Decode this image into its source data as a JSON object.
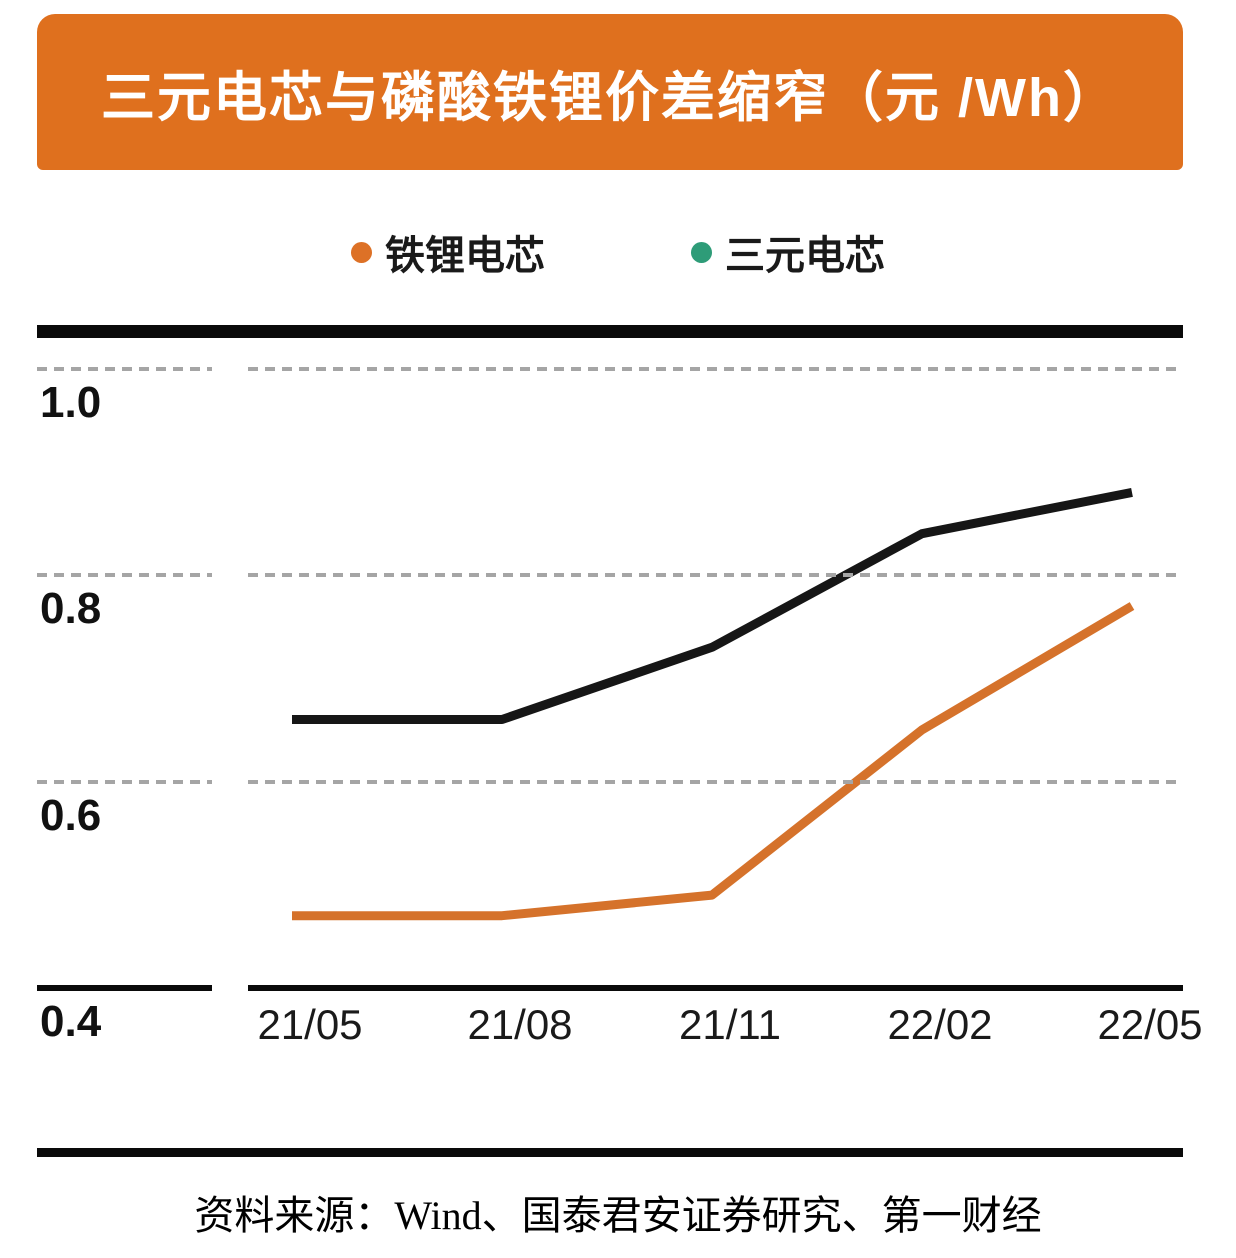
{
  "header": {
    "title": "三元电芯与磷酸铁锂价差缩窄（元 /Wh）",
    "bg_color": "#DF701E",
    "text_color": "#FFFFFF"
  },
  "legend": [
    {
      "key": "lfp",
      "label": "铁锂电芯",
      "dot_color": "#DD7126"
    },
    {
      "key": "ternary",
      "label": "三元电芯",
      "dot_color": "#2E9C78"
    }
  ],
  "chart_data": {
    "type": "line",
    "title": "三元电芯与磷酸铁锂价差缩窄（元 /Wh）",
    "unit": "元/Wh",
    "categories": [
      "21/05",
      "21/08",
      "21/11",
      "22/02",
      "22/05"
    ],
    "series": [
      {
        "key": "lfp",
        "name": "铁锂电芯",
        "line_color": "#D5722B",
        "values": [
          0.47,
          0.47,
          0.49,
          0.65,
          0.77
        ]
      },
      {
        "key": "ternary",
        "name": "三元电芯",
        "line_color": "#161616",
        "values": [
          0.66,
          0.66,
          0.73,
          0.84,
          0.88
        ]
      }
    ],
    "y_ticks": [
      "1.0",
      "0.8",
      "0.6",
      "0.4"
    ],
    "y_tick_values": [
      1.0,
      0.8,
      0.6,
      0.4
    ],
    "ylim": [
      0.4,
      1.06
    ],
    "xlabel": "",
    "ylabel": "",
    "grid": "dashed horizontal gridlines",
    "legend_position": "top"
  },
  "footer": {
    "source": "资料来源：Wind、国泰君安证券研究、第一财经"
  }
}
